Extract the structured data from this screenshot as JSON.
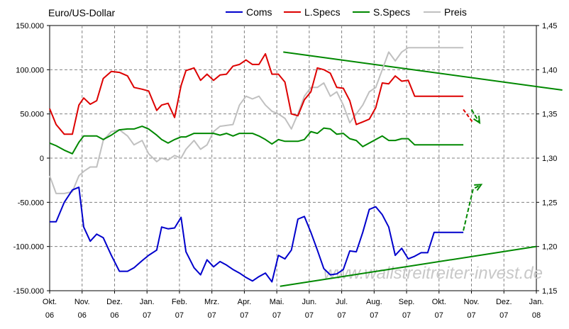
{
  "chart_data": {
    "type": "line",
    "title": "Euro/US-Dollar",
    "watermark": "www.wallstreitreiter-invest.de",
    "x_tick_labels": [
      [
        "Okt.",
        "06"
      ],
      [
        "Nov.",
        "06"
      ],
      [
        "Dez.",
        "06"
      ],
      [
        "Jan.",
        "07"
      ],
      [
        "Feb.",
        "07"
      ],
      [
        "Mrz.",
        "07"
      ],
      [
        "Apr.",
        "07"
      ],
      [
        "Mai.",
        "07"
      ],
      [
        "Jun.",
        "07"
      ],
      [
        "Jul.",
        "07"
      ],
      [
        "Aug.",
        "07"
      ],
      [
        "Sep.",
        "07"
      ],
      [
        "Okt.",
        "07"
      ],
      [
        "Nov.",
        "07"
      ],
      [
        "Dez.",
        "07"
      ],
      [
        "Jan.",
        "08"
      ]
    ],
    "y_left": {
      "ylim": [
        -150000,
        150000
      ],
      "ticks": [
        -150000,
        -100000,
        -50000,
        0,
        50000,
        100000,
        150000
      ],
      "tick_labels": [
        "-150.000",
        "-100.000",
        "-50.000",
        "0",
        "50.000",
        "100.000",
        "150.000"
      ]
    },
    "y_right": {
      "ylim": [
        1.15,
        1.45
      ],
      "ticks": [
        1.15,
        1.2,
        1.25,
        1.3,
        1.35,
        1.4,
        1.45
      ],
      "tick_labels": [
        "1,15",
        "1,20",
        "1,25",
        "1,30",
        "1,35",
        "1,40",
        "1,45"
      ]
    },
    "grid": true,
    "legend_position": "top",
    "x_range": [
      0,
      15
    ],
    "series": [
      {
        "name": "Coms",
        "color": "#0000cc",
        "axis": "left",
        "x": [
          0,
          0.2,
          0.45,
          0.7,
          0.9,
          1.05,
          1.25,
          1.45,
          1.65,
          1.9,
          2.15,
          2.4,
          2.6,
          2.85,
          3.05,
          3.3,
          3.45,
          3.65,
          3.85,
          4.05,
          4.2,
          4.45,
          4.65,
          4.85,
          5.05,
          5.25,
          5.45,
          5.65,
          5.85,
          6.05,
          6.25,
          6.45,
          6.65,
          6.85,
          7.05,
          7.25,
          7.45,
          7.65,
          7.85,
          8.05,
          8.25,
          8.45,
          8.65,
          8.85,
          9.05,
          9.25,
          9.45,
          9.65,
          9.85,
          10.05,
          10.25,
          10.45,
          10.65,
          10.85,
          11.05,
          11.25,
          11.45,
          11.65,
          11.85,
          12.05,
          12.25,
          12.45,
          12.6,
          12.75
        ],
        "y": [
          -72000,
          -72000,
          -50000,
          -36000,
          -33000,
          -78000,
          -94000,
          -86000,
          -90000,
          -110000,
          -128000,
          -128000,
          -124000,
          -116000,
          -110000,
          -104000,
          -78000,
          -80000,
          -79000,
          -67000,
          -106000,
          -124000,
          -132000,
          -115000,
          -123000,
          -117000,
          -121000,
          -126000,
          -130000,
          -135000,
          -139000,
          -134000,
          -130000,
          -140000,
          -110000,
          -114000,
          -104000,
          -69000,
          -66000,
          -84000,
          -104000,
          -125000,
          -132000,
          -131000,
          -126000,
          -105000,
          -106000,
          -84000,
          -58000,
          -55000,
          -64000,
          -78000,
          -110000,
          -102000,
          -114000,
          -111000,
          -107000,
          -107000,
          -84000,
          -84000,
          -84000,
          -84000,
          -84000,
          -84000
        ]
      },
      {
        "name": "L.Specs",
        "color": "#dd0000",
        "axis": "left",
        "x": [
          0,
          0.2,
          0.45,
          0.7,
          0.9,
          1.05,
          1.25,
          1.45,
          1.65,
          1.9,
          2.15,
          2.4,
          2.6,
          2.85,
          3.05,
          3.3,
          3.45,
          3.65,
          3.85,
          4.05,
          4.2,
          4.45,
          4.65,
          4.85,
          5.05,
          5.25,
          5.45,
          5.65,
          5.85,
          6.05,
          6.25,
          6.45,
          6.65,
          6.85,
          7.05,
          7.25,
          7.45,
          7.65,
          7.85,
          8.05,
          8.25,
          8.45,
          8.65,
          8.85,
          9.05,
          9.25,
          9.45,
          9.65,
          9.85,
          10.05,
          10.25,
          10.45,
          10.65,
          10.85,
          11.05,
          11.25,
          11.45,
          11.65,
          11.85,
          12.05,
          12.25,
          12.45,
          12.6,
          12.75
        ],
        "y": [
          56000,
          38000,
          27000,
          27000,
          60000,
          68000,
          61000,
          65000,
          90000,
          98000,
          97000,
          93000,
          80000,
          78000,
          76000,
          54000,
          60000,
          62000,
          46000,
          82000,
          99000,
          102000,
          88000,
          95000,
          88000,
          94000,
          95000,
          104000,
          106000,
          111000,
          106000,
          106000,
          118000,
          95000,
          95000,
          86000,
          50000,
          48000,
          66000,
          75000,
          102000,
          100000,
          96000,
          80000,
          79000,
          65000,
          38000,
          41000,
          44000,
          57000,
          85000,
          84000,
          93000,
          87000,
          88000,
          70000,
          70000,
          70000,
          70000,
          70000,
          70000,
          70000,
          70000,
          70000
        ]
      },
      {
        "name": "S.Specs",
        "color": "#008800",
        "axis": "left",
        "x": [
          0,
          0.2,
          0.45,
          0.7,
          0.9,
          1.05,
          1.25,
          1.45,
          1.65,
          1.9,
          2.15,
          2.4,
          2.6,
          2.85,
          3.05,
          3.3,
          3.45,
          3.65,
          3.85,
          4.05,
          4.2,
          4.45,
          4.65,
          4.85,
          5.05,
          5.25,
          5.45,
          5.65,
          5.85,
          6.05,
          6.25,
          6.45,
          6.65,
          6.85,
          7.05,
          7.25,
          7.45,
          7.65,
          7.85,
          8.05,
          8.25,
          8.45,
          8.65,
          8.85,
          9.05,
          9.25,
          9.45,
          9.65,
          9.85,
          10.05,
          10.25,
          10.45,
          10.65,
          10.85,
          11.05,
          11.25,
          11.45,
          11.65,
          11.85,
          12.05,
          12.25,
          12.45,
          12.6,
          12.75
        ],
        "y": [
          17000,
          14000,
          9000,
          5000,
          18000,
          25000,
          25000,
          25000,
          21000,
          26000,
          32000,
          33000,
          33000,
          36000,
          33000,
          26000,
          21000,
          17000,
          21000,
          24000,
          24000,
          28000,
          28000,
          28000,
          28000,
          26000,
          28000,
          25000,
          28000,
          28000,
          28000,
          25000,
          21000,
          16000,
          21000,
          19000,
          19000,
          19000,
          21000,
          30000,
          28000,
          34000,
          33000,
          27000,
          28000,
          22000,
          20000,
          13000,
          17000,
          21000,
          25000,
          20000,
          20000,
          22000,
          22000,
          15000,
          15000,
          15000,
          15000,
          15000,
          15000,
          15000,
          15000,
          15000
        ]
      },
      {
        "name": "Preis",
        "color": "#c0c0c0",
        "axis": "right",
        "x": [
          0,
          0.2,
          0.45,
          0.7,
          0.9,
          1.05,
          1.25,
          1.45,
          1.65,
          1.9,
          2.15,
          2.4,
          2.6,
          2.85,
          3.05,
          3.3,
          3.45,
          3.65,
          3.85,
          4.05,
          4.2,
          4.45,
          4.65,
          4.85,
          5.05,
          5.25,
          5.45,
          5.65,
          5.85,
          6.05,
          6.25,
          6.45,
          6.65,
          6.85,
          7.05,
          7.25,
          7.45,
          7.65,
          7.85,
          8.05,
          8.25,
          8.45,
          8.65,
          8.85,
          9.05,
          9.25,
          9.45,
          9.65,
          9.85,
          10.05,
          10.25,
          10.45,
          10.65,
          10.85,
          11.05,
          11.25,
          11.45,
          11.65,
          11.85,
          12.05,
          12.25,
          12.45,
          12.6,
          12.75
        ],
        "y": [
          1.28,
          1.26,
          1.26,
          1.262,
          1.28,
          1.285,
          1.29,
          1.29,
          1.32,
          1.33,
          1.332,
          1.325,
          1.315,
          1.32,
          1.305,
          1.296,
          1.3,
          1.298,
          1.303,
          1.3,
          1.31,
          1.32,
          1.31,
          1.315,
          1.33,
          1.336,
          1.337,
          1.338,
          1.36,
          1.37,
          1.367,
          1.37,
          1.36,
          1.353,
          1.35,
          1.345,
          1.333,
          1.35,
          1.37,
          1.38,
          1.38,
          1.385,
          1.37,
          1.375,
          1.36,
          1.34,
          1.35,
          1.36,
          1.375,
          1.38,
          1.4,
          1.42,
          1.41,
          1.42,
          1.425,
          1.425,
          1.425,
          1.425,
          1.425,
          1.425,
          1.425,
          1.425,
          1.425,
          1.425
        ]
      }
    ],
    "annotations": {
      "upper_trendline": {
        "color": "#008800",
        "from": [
          7.2,
          1.42
        ],
        "to": [
          15.8,
          1.377
        ]
      },
      "lower_trendline": {
        "color": "#008800",
        "from": [
          7.1,
          1.155
        ],
        "to": [
          15.0,
          1.2
        ]
      },
      "red_dashed_extension": {
        "color": "#dd0000",
        "points": [
          [
            12.75,
            1.355
          ],
          [
            13.05,
            1.34
          ]
        ]
      },
      "green_down_arrow": {
        "color": "#008800",
        "points": [
          [
            13.0,
            1.355
          ],
          [
            13.25,
            1.34
          ]
        ]
      },
      "green_up_arrow": {
        "color": "#008800",
        "points": [
          [
            12.75,
            1.218
          ],
          [
            13.05,
            1.265
          ],
          [
            13.3,
            1.27
          ]
        ]
      }
    }
  }
}
